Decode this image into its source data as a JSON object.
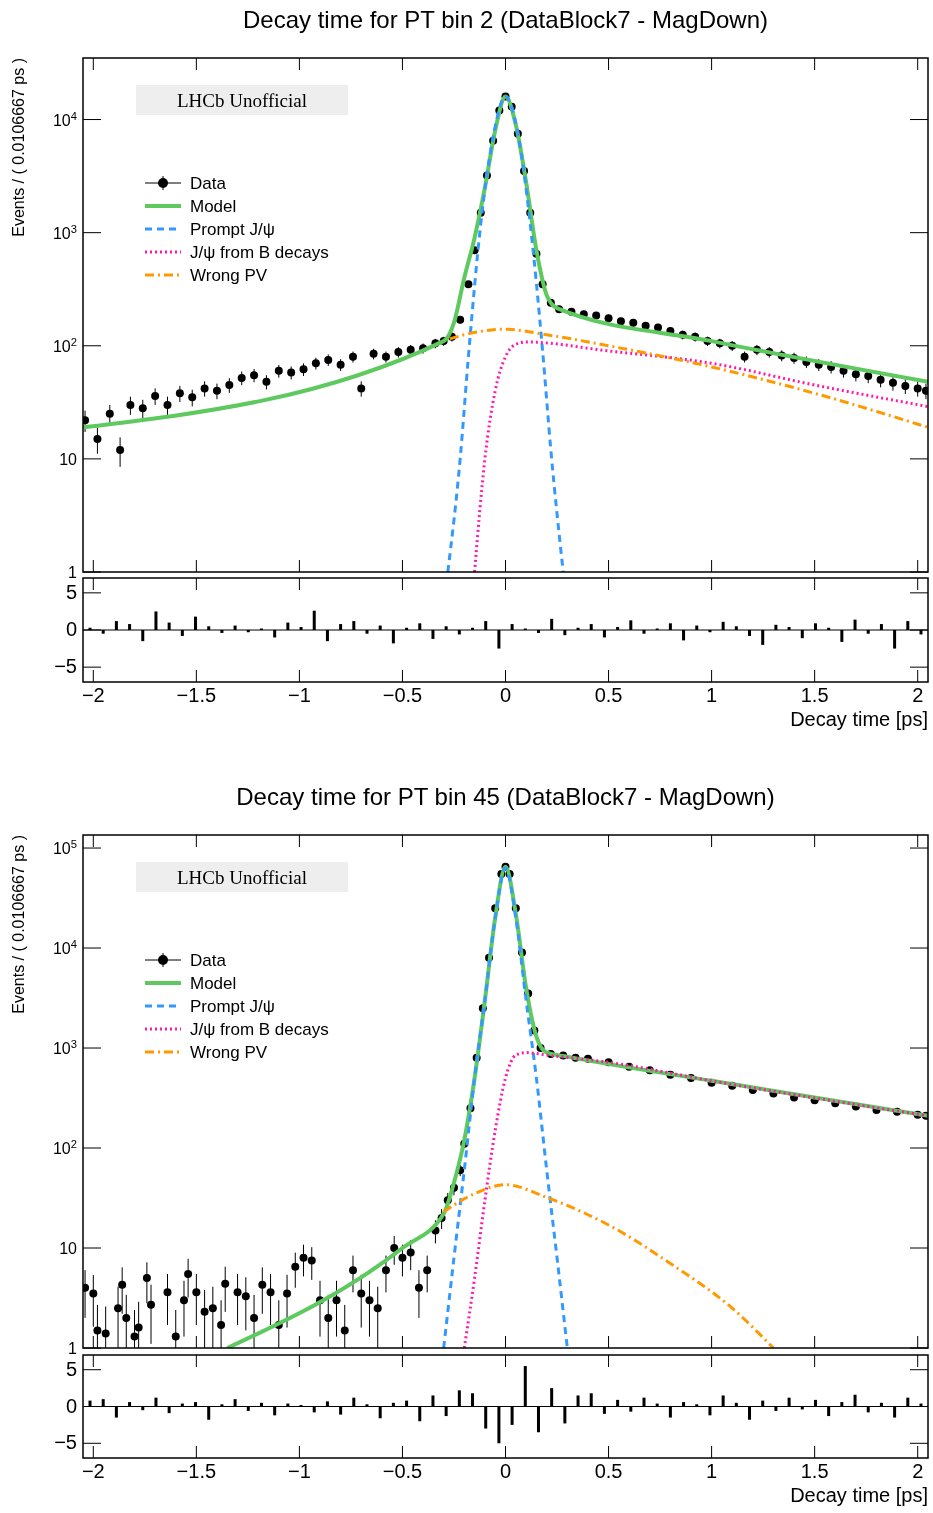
{
  "chart_data": [
    {
      "type": "line",
      "title": "Decay time for PT bin 2 (DataBlock7 - MagDown)",
      "ylabel": "Events / ( 0.0106667 ps )",
      "annotations": [
        "LHCb Unofficial"
      ],
      "legend": "top left",
      "log": true,
      "tick_labels": "y",
      "xlim": [
        -2.05,
        2.05
      ],
      "xticks": [
        {
          "value": -2,
          "label": null
        },
        {
          "value": -1.5,
          "label": null
        },
        {
          "value": -1,
          "label": null
        },
        {
          "value": -0.5,
          "label": null
        },
        {
          "value": 0,
          "label": null
        },
        {
          "value": 0.5,
          "label": null
        },
        {
          "value": 1,
          "label": null
        },
        {
          "value": 1.5,
          "label": null
        },
        {
          "value": 2,
          "label": null
        }
      ],
      "ylim": [
        1,
        35000
      ],
      "yticks": [
        1,
        10,
        {
          "value": 100,
          "label": "10$^{2}$"
        },
        {
          "value": 1000,
          "label": "10$^{3}$"
        },
        {
          "value": 10000,
          "label": "10$^{4}$"
        }
      ],
      "series": [
        {
          "name": "Data",
          "type": "scatter",
          "marker": "circle",
          "color": "#000000",
          "x": [
            -2.04,
            -1.98,
            -1.92,
            -1.87,
            -1.82,
            -1.76,
            -1.7,
            -1.64,
            -1.58,
            -1.52,
            -1.46,
            -1.4,
            -1.34,
            -1.28,
            -1.22,
            -1.16,
            -1.1,
            -1.04,
            -0.98,
            -0.92,
            -0.86,
            -0.8,
            -0.74,
            -0.7,
            -0.64,
            -0.58,
            -0.52,
            -0.46,
            -0.4,
            -0.34,
            -0.3,
            -0.26,
            -0.22,
            -0.18,
            -0.15,
            -0.12,
            -0.09,
            -0.06,
            -0.03,
            0,
            0.03,
            0.06,
            0.09,
            0.12,
            0.15,
            0.18,
            0.22,
            0.26,
            0.32,
            0.38,
            0.44,
            0.5,
            0.56,
            0.62,
            0.68,
            0.74,
            0.8,
            0.86,
            0.92,
            0.98,
            1.04,
            1.1,
            1.16,
            1.22,
            1.28,
            1.34,
            1.4,
            1.46,
            1.52,
            1.58,
            1.64,
            1.7,
            1.76,
            1.82,
            1.88,
            1.94,
            2.0,
            2.04
          ],
          "values": [
            22,
            15,
            25,
            12,
            30,
            28,
            36,
            30,
            38,
            35,
            42,
            40,
            45,
            52,
            55,
            48,
            60,
            58,
            62,
            70,
            75,
            68,
            80,
            42,
            85,
            80,
            88,
            92,
            95,
            105,
            110,
            120,
            170,
            350,
            700,
            1500,
            3200,
            6500,
            12000,
            16000,
            13000,
            7500,
            3500,
            1500,
            650,
            350,
            240,
            210,
            200,
            190,
            185,
            175,
            165,
            160,
            150,
            145,
            135,
            125,
            120,
            110,
            105,
            100,
            80,
            92,
            88,
            82,
            78,
            72,
            68,
            65,
            60,
            56,
            54,
            50,
            47,
            44,
            42,
            40
          ],
          "errors": [
            4.7,
            3.9,
            5,
            3.5,
            5.5,
            5.3,
            6,
            5.5,
            6.2,
            5.9,
            6.5,
            6.3,
            6.7,
            7.2,
            7.4,
            6.9,
            7.7,
            7.6,
            7.9,
            8.4,
            8.7,
            8.2,
            8.9,
            6.5,
            9.2,
            8.9,
            9.4,
            9.6,
            9.7,
            10,
            10,
            11,
            13,
            null,
            null,
            null,
            null,
            null,
            null,
            null,
            null,
            null,
            null,
            null,
            null,
            null,
            15,
            14.5,
            14,
            14,
            13.6,
            13.2,
            12.8,
            12.6,
            12.2,
            12,
            11.6,
            11.2,
            11,
            10.5,
            10.2,
            10,
            8.9,
            9.6,
            9.4,
            9.1,
            8.8,
            8.5,
            8.2,
            8.1,
            7.7,
            7.5,
            7.3,
            7.1,
            6.9,
            6.6,
            6.5,
            6.3
          ]
        },
        {
          "name": "Model",
          "type": "line",
          "line_style": "solid",
          "color": "#5ec95e",
          "x": [
            -2.05,
            -0.3,
            -0.25,
            -0.2,
            -0.15,
            -0.1,
            -0.05,
            0,
            0.05,
            0.1,
            0.15,
            0.2,
            0.25,
            1,
            2.05
          ],
          "values": [
            19,
            110,
            160,
            400,
            900,
            2500,
            8000,
            16000,
            9000,
            2800,
            700,
            280,
            215,
            110,
            48
          ]
        },
        {
          "name": "Prompt J/ψ",
          "type": "line",
          "line_style": "dashed",
          "color": "#3399ff",
          "x": [
            -0.28,
            -0.22,
            -0.18,
            -0.12,
            -0.06,
            0,
            0.06,
            0.12,
            0.18,
            0.22,
            0.28
          ],
          "values": [
            1,
            10,
            80,
            1200,
            7000,
            16000,
            7500,
            1200,
            90,
            12,
            1
          ]
        },
        {
          "name": "J/ψ from B decays",
          "type": "line",
          "line_style": "dotted",
          "color": "#ff1aa8",
          "x": [
            -0.15,
            -0.1,
            -0.05,
            0,
            0.05,
            0.1,
            0.5,
            1,
            1.5,
            2.05
          ],
          "values": [
            1,
            10,
            40,
            80,
            103,
            108,
            90,
            70,
            45,
            29
          ]
        },
        {
          "name": "Wrong PV",
          "type": "line",
          "line_style": "dashdot",
          "color": "#ff9900",
          "x": [
            -0.27,
            -0.2,
            0,
            0.2,
            0.5,
            1,
            1.5,
            2.05
          ],
          "values": [
            115,
            125,
            140,
            125,
            100,
            65,
            38,
            19
          ]
        }
      ]
    },
    {
      "type": "bar",
      "xlabel": "Decay time [ps]",
      "xlim": [
        -2.05,
        2.05
      ],
      "xticks": [
        {
          "value": -2,
          "label": "−2"
        },
        {
          "value": -1.5,
          "label": "−1.5"
        },
        {
          "value": -1,
          "label": "−1"
        },
        {
          "value": -0.5,
          "label": "−0.5"
        },
        0,
        0.5,
        1,
        1.5,
        2
      ],
      "ylim": [
        -7,
        7
      ],
      "yticks": [
        {
          "value": -5,
          "label": "−5"
        },
        0,
        5
      ],
      "color": "#000000",
      "x": [
        -2.016,
        -1.952,
        -1.888,
        -1.824,
        -1.76,
        -1.696,
        -1.632,
        -1.568,
        -1.504,
        -1.44,
        -1.376,
        -1.312,
        -1.248,
        -1.184,
        -1.12,
        -1.056,
        -0.992,
        -0.928,
        -0.864,
        -0.8,
        -0.736,
        -0.672,
        -0.608,
        -0.544,
        -0.48,
        -0.416,
        -0.352,
        -0.288,
        -0.224,
        -0.16,
        -0.096,
        -0.032,
        0.032,
        0.096,
        0.16,
        0.224,
        0.288,
        0.352,
        0.416,
        0.48,
        0.544,
        0.608,
        0.672,
        0.736,
        0.8,
        0.864,
        0.928,
        0.992,
        1.056,
        1.12,
        1.184,
        1.248,
        1.312,
        1.376,
        1.44,
        1.504,
        1.568,
        1.632,
        1.696,
        1.76,
        1.824,
        1.888,
        1.952,
        2.016
      ],
      "values": [
        0.3,
        -0.5,
        1.2,
        0.8,
        -1.5,
        2.5,
        1.0,
        -0.8,
        1.8,
        0.5,
        -0.4,
        0.6,
        -0.3,
        0.2,
        -1.0,
        1.0,
        0.4,
        2.6,
        -1.5,
        0.8,
        1.2,
        -0.5,
        0.6,
        -1.8,
        0.3,
        0.9,
        -1.2,
        0.5,
        -0.6,
        0.3,
        1.2,
        -2.5,
        0.8,
        0.2,
        -0.4,
        1.5,
        -0.7,
        0.3,
        0.8,
        -1.0,
        0.4,
        1.3,
        -0.5,
        0.2,
        0.9,
        -1.4,
        0.6,
        -0.3,
        1.1,
        0.5,
        -0.8,
        -2.0,
        0.7,
        0.4,
        -1.1,
        0.9,
        0.3,
        -1.6,
        1.4,
        -0.5,
        0.8,
        -2.5,
        1.2,
        -0.6
      ]
    },
    {
      "type": "line",
      "title": "Decay time for PT bin 45 (DataBlock7 - MagDown)",
      "ylabel": "Events / ( 0.0106667 ps )",
      "annotations": [
        "LHCb Unofficial"
      ],
      "legend": "top left",
      "log": true,
      "tick_labels": "y",
      "xlim": [
        -2.05,
        2.05
      ],
      "xticks": [
        {
          "value": -2,
          "label": null
        },
        {
          "value": -1.5,
          "label": null
        },
        {
          "value": -1,
          "label": null
        },
        {
          "value": -0.5,
          "label": null
        },
        {
          "value": 0,
          "label": null
        },
        {
          "value": 0.5,
          "label": null
        },
        {
          "value": 1,
          "label": null
        },
        {
          "value": 1.5,
          "label": null
        },
        {
          "value": 2,
          "label": null
        }
      ],
      "ylim": [
        1,
        135000
      ],
      "yticks": [
        1,
        10,
        {
          "value": 100,
          "label": "10$^{2}$"
        },
        {
          "value": 1000,
          "label": "10$^{3}$"
        },
        {
          "value": 10000,
          "label": "10$^{4}$"
        },
        {
          "value": 100000,
          "label": "10$^{5}$"
        }
      ],
      "series": [
        {
          "name": "Data",
          "type": "scatter",
          "marker": "circle",
          "color": "#000000",
          "x": [
            -2.04,
            -2.0,
            -1.98,
            -1.94,
            -1.88,
            -1.86,
            -1.84,
            -1.8,
            -1.78,
            -1.74,
            -1.72,
            -1.64,
            -1.6,
            -1.56,
            -1.54,
            -1.5,
            -1.46,
            -1.42,
            -1.38,
            -1.36,
            -1.3,
            -1.26,
            -1.22,
            -1.18,
            -1.14,
            -1.1,
            -1.06,
            -1.02,
            -0.98,
            -0.94,
            -0.9,
            -0.86,
            -0.82,
            -0.78,
            -0.74,
            -0.7,
            -0.66,
            -0.62,
            -0.58,
            -0.54,
            -0.5,
            -0.46,
            -0.42,
            -0.38,
            -0.34,
            -0.31,
            -0.28,
            -0.25,
            -0.22,
            -0.2,
            -0.17,
            -0.14,
            -0.11,
            -0.08,
            -0.05,
            -0.02,
            0,
            0.02,
            0.05,
            0.08,
            0.11,
            0.14,
            0.17,
            0.22,
            0.28,
            0.34,
            0.4,
            0.5,
            0.6,
            0.7,
            0.8,
            0.9,
            1.0,
            1.1,
            1.2,
            1.3,
            1.4,
            1.5,
            1.6,
            1.7,
            1.8,
            1.9,
            2.0,
            2.04
          ],
          "values": [
            4,
            3.5,
            1.5,
            1.4,
            2.5,
            4.3,
            2,
            1.3,
            1.6,
            5,
            2.7,
            3.6,
            1.3,
            3,
            5.5,
            3.6,
            2.3,
            2.5,
            1.7,
            4.4,
            3.6,
            3.3,
            2,
            4.3,
            3.6,
            1.7,
            3.5,
            6.5,
            8,
            7.5,
            3,
            2,
            3,
            1.5,
            6,
            3.5,
            3,
            2.5,
            6,
            10,
            8,
            9,
            4,
            6,
            15,
            20,
            30,
            40,
            60,
            110,
            250,
            800,
            2500,
            8000,
            25000,
            55000,
            65000,
            55000,
            25000,
            9000,
            3500,
            1500,
            1000,
            870,
            840,
            800,
            780,
            720,
            650,
            600,
            540,
            500,
            450,
            420,
            380,
            350,
            320,
            300,
            280,
            260,
            240,
            230,
            215,
            210
          ],
          "errors": [
            2,
            1.87,
            [
              1,
              2.7
            ],
            [
              1,
              2.6
            ],
            [
              1,
              4.1
            ],
            2.1,
            [
              1,
              3.4
            ],
            [
              1,
              2.4
            ],
            [
              1,
              2.9
            ],
            2.2,
            1.6,
            1.9,
            [
              1,
              2.4
            ],
            1.7,
            2.3,
            1.9,
            [
              1,
              3.8
            ],
            [
              1,
              4.1
            ],
            [
              1,
              3
            ],
            2.1,
            1.9,
            1.8,
            [
              1,
              3.4
            ],
            2.1,
            1.9,
            [
              1,
              3
            ],
            1.9,
            2.5,
            2.8,
            2.7,
            1.7,
            [
              1,
              3.4
            ],
            1.7,
            [
              1,
              2.7
            ],
            2.4,
            1.9,
            1.7,
            [
              1,
              4.1
            ],
            2.4,
            3.2,
            2.8,
            3,
            2,
            2.4,
            3.9,
            4.5,
            5.5,
            6.3,
            7.7,
            10.5,
            null,
            null,
            null,
            null,
            null,
            null,
            null,
            null,
            null,
            null,
            null,
            null,
            null,
            null,
            null,
            null,
            null,
            null,
            null,
            null,
            null,
            null,
            null,
            null,
            null,
            null,
            null,
            null,
            null,
            null,
            null,
            null,
            null,
            null
          ]
        },
        {
          "name": "Model",
          "type": "line",
          "line_style": "solid",
          "color": "#5ec95e",
          "x": [
            -1.35,
            -0.5,
            -0.3,
            -0.25,
            -0.2,
            -0.15,
            -0.1,
            -0.05,
            0,
            0.05,
            0.1,
            0.15,
            0.2,
            0.3,
            1,
            2.05
          ],
          "values": [
            1,
            10,
            22,
            45,
            120,
            500,
            3000,
            20000,
            65000,
            22000,
            4000,
            1300,
            900,
            820,
            470,
            210
          ]
        },
        {
          "name": "Prompt J/ψ",
          "type": "line",
          "line_style": "dashed",
          "color": "#3399ff",
          "x": [
            -0.3,
            -0.25,
            -0.2,
            -0.15,
            -0.1,
            -0.05,
            0,
            0.05,
            0.1,
            0.15,
            0.2,
            0.25,
            0.3
          ],
          "values": [
            1,
            8,
            60,
            500,
            3000,
            20000,
            63000,
            20000,
            3000,
            500,
            60,
            8,
            1
          ]
        },
        {
          "name": "J/ψ from B decays",
          "type": "line",
          "line_style": "dotted",
          "color": "#ff1aa8",
          "x": [
            -0.2,
            -0.15,
            -0.1,
            -0.05,
            0,
            0.05,
            0.1,
            0.2,
            0.5,
            1,
            2.05
          ],
          "values": [
            1,
            5,
            30,
            150,
            500,
            850,
            900,
            850,
            720,
            470,
            210
          ]
        },
        {
          "name": "Wrong PV",
          "type": "line",
          "line_style": "dashdot",
          "color": "#ff9900",
          "x": [
            -0.3,
            -0.15,
            0,
            0.2,
            0.5,
            0.8,
            1.1,
            1.3
          ],
          "values": [
            23,
            35,
            43,
            32,
            17,
            7,
            2.5,
            1
          ]
        }
      ]
    },
    {
      "type": "bar",
      "xlabel": "Decay time [ps]",
      "xlim": [
        -2.05,
        2.05
      ],
      "xticks": [
        {
          "value": -2,
          "label": "−2"
        },
        {
          "value": -1.5,
          "label": "−1.5"
        },
        {
          "value": -1,
          "label": "−1"
        },
        {
          "value": -0.5,
          "label": "−0.5"
        },
        0,
        0.5,
        1,
        1.5,
        2
      ],
      "ylim": [
        -7,
        7
      ],
      "yticks": [
        {
          "value": -5,
          "label": "−5"
        },
        0,
        5
      ],
      "color": "#000000",
      "x": [
        -2.016,
        -1.952,
        -1.888,
        -1.824,
        -1.76,
        -1.696,
        -1.632,
        -1.568,
        -1.504,
        -1.44,
        -1.376,
        -1.312,
        -1.248,
        -1.184,
        -1.12,
        -1.056,
        -0.992,
        -0.928,
        -0.864,
        -0.8,
        -0.736,
        -0.672,
        -0.608,
        -0.544,
        -0.48,
        -0.416,
        -0.352,
        -0.288,
        -0.224,
        -0.16,
        -0.096,
        -0.032,
        0.032,
        0.096,
        0.16,
        0.224,
        0.288,
        0.352,
        0.416,
        0.48,
        0.544,
        0.608,
        0.672,
        0.736,
        0.8,
        0.864,
        0.928,
        0.992,
        1.056,
        1.12,
        1.184,
        1.248,
        1.312,
        1.376,
        1.44,
        1.504,
        1.568,
        1.632,
        1.696,
        1.76,
        1.824,
        1.888,
        1.952,
        2.016
      ],
      "values": [
        0.8,
        1.0,
        -1.5,
        0.6,
        -0.5,
        1.2,
        -0.9,
        0.4,
        0.6,
        -1.8,
        0.3,
        1.0,
        -0.6,
        0.5,
        -1.2,
        0.4,
        0.2,
        -0.8,
        0.7,
        -1.1,
        1.2,
        0.3,
        -1.6,
        0.5,
        0.8,
        -2.0,
        1.5,
        -1.3,
        2.2,
        1.8,
        -3.0,
        -5.0,
        -2.5,
        5.5,
        -3.5,
        2.5,
        -2.3,
        1.5,
        1.8,
        -1.0,
        0.9,
        -0.7,
        1.2,
        0.4,
        -1.5,
        0.6,
        0.3,
        -1.2,
        1.5,
        0.5,
        -1.8,
        0.8,
        -0.6,
        1.2,
        -0.4,
        0.9,
        -1.3,
        0.6,
        1.6,
        -0.8,
        0.5,
        -1.5,
        1.2,
        0.4
      ]
    }
  ]
}
